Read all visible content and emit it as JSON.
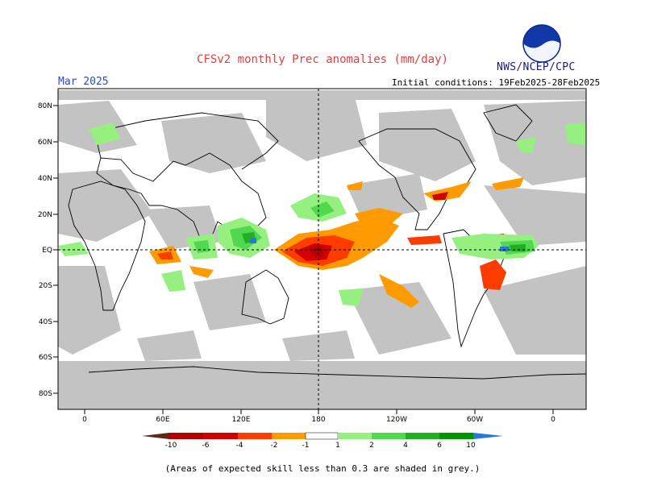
{
  "header": {
    "title": "CFSv2 monthly Prec anomalies (mm/day)",
    "agency": "NWS/NCEP/CPC",
    "logo_text": "NOAA",
    "month": "Mar 2025",
    "initial_conditions": "Initial conditions: 19Feb2025-28Feb2025"
  },
  "map": {
    "lat_labels": [
      "80N",
      "60N",
      "40N",
      "20N",
      "EQ",
      "20S",
      "40S",
      "60S",
      "80S"
    ],
    "lon_labels": [
      "0",
      "60E",
      "120E",
      "180",
      "120W",
      "60W",
      "0"
    ],
    "colors": {
      "skill_mask": "#c3c3c3",
      "land_outline": "#000000",
      "dry": "#c80000",
      "wet": "#00b000"
    }
  },
  "colorbar": {
    "labels": [
      "-10",
      "-6",
      "-4",
      "-2",
      "-1",
      "1",
      "2",
      "4",
      "6",
      "10"
    ],
    "colors": [
      "#5a2a14",
      "#b40000",
      "#d20000",
      "#ff3c00",
      "#ff9a00",
      "#ffffff",
      "#96f080",
      "#50d850",
      "#20b020",
      "#009600",
      "#2878d8"
    ]
  },
  "note": "(Areas of expected skill less than 0.3 are shaded in grey.)"
}
